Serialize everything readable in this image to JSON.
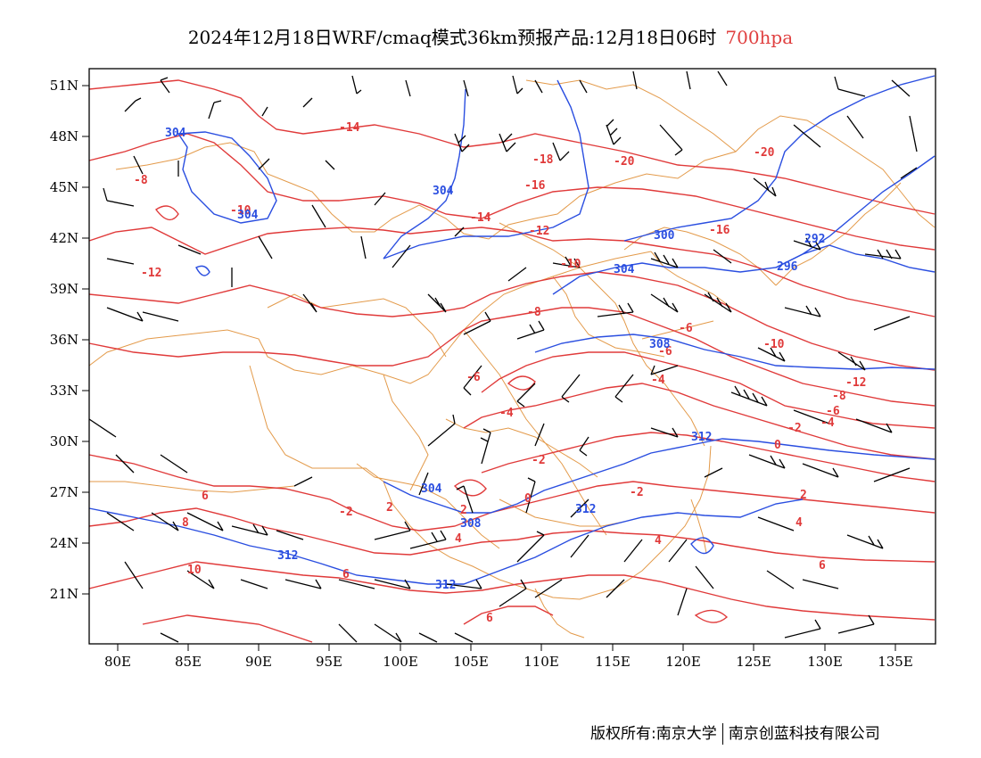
{
  "title": {
    "main": "2024年12月18日WRF/cmaq模式36km预报产品:12月18日06时",
    "level": "700hpa",
    "level_color": "#e04040"
  },
  "axes": {
    "lat_labels": [
      "51N",
      "48N",
      "45N",
      "42N",
      "39N",
      "36N",
      "33N",
      "30N",
      "27N",
      "24N",
      "21N"
    ],
    "lon_labels": [
      "80E",
      "85E",
      "90E",
      "95E",
      "100E",
      "105E",
      "110E",
      "115E",
      "120E",
      "125E",
      "130E",
      "135E"
    ]
  },
  "colors": {
    "temperature": "#e03a3a",
    "geopotential": "#2a4ee0",
    "boundary": "#e39a4a",
    "wind": "#000000"
  },
  "temperature_labels": [
    "-20",
    "-20",
    "-18",
    "-16",
    "-16",
    "-14",
    "-14",
    "-12",
    "-12",
    "-12",
    "-10",
    "-10",
    "-10",
    "-8",
    "-8",
    "-8",
    "-6",
    "-6",
    "-6",
    "-6",
    "-4",
    "-4",
    "-4",
    "-2",
    "-2",
    "-2",
    "-2",
    "0",
    "0",
    "2",
    "2",
    "2",
    "4",
    "4",
    "4",
    "6",
    "6",
    "6",
    "6",
    "8",
    "10"
  ],
  "height_labels": [
    "304",
    "304",
    "304",
    "304",
    "304",
    "300",
    "296",
    "292",
    "308",
    "308",
    "312",
    "312",
    "312",
    "312"
  ],
  "footer": {
    "left": "版权所有:南京大学",
    "right": "南京创蓝科技有限公司"
  }
}
